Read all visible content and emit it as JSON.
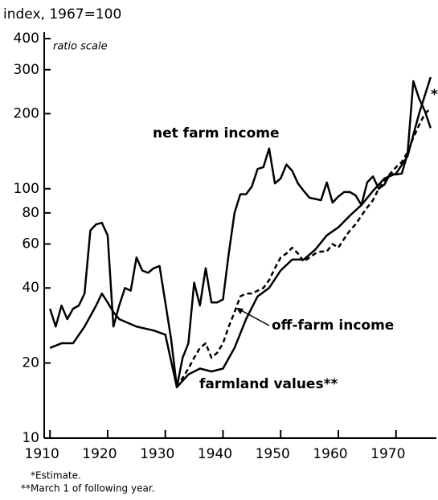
{
  "chart_data": {
    "type": "line",
    "title": "index, 1967=100",
    "subtitle": "ratio scale",
    "log_scale": true,
    "grid": false,
    "xlim": [
      1909,
      1977
    ],
    "xticks": [
      1910,
      1920,
      1930,
      1940,
      1950,
      1960,
      1970
    ],
    "ylim": [
      10,
      400
    ],
    "yticks": [
      10,
      20,
      40,
      60,
      80,
      100,
      200,
      300,
      400
    ],
    "series": [
      {
        "name": "net farm income",
        "color": "#000000",
        "dash": false,
        "x": [
          1910,
          1911,
          1912,
          1913,
          1914,
          1915,
          1916,
          1917,
          1918,
          1919,
          1920,
          1921,
          1922,
          1923,
          1924,
          1925,
          1926,
          1927,
          1928,
          1929,
          1930,
          1931,
          1932,
          1933,
          1934,
          1935,
          1936,
          1937,
          1938,
          1939,
          1940,
          1941,
          1942,
          1943,
          1944,
          1945,
          1946,
          1947,
          1948,
          1949,
          1950,
          1951,
          1952,
          1953,
          1954,
          1955,
          1956,
          1957,
          1958,
          1959,
          1960,
          1961,
          1962,
          1963,
          1964,
          1965,
          1966,
          1967,
          1968,
          1969,
          1970,
          1971,
          1972,
          1973,
          1974,
          1975,
          1976
        ],
        "values": [
          33,
          28,
          34,
          30,
          33,
          34,
          38,
          68,
          72,
          73,
          65,
          28,
          34,
          40,
          39,
          53,
          47,
          46,
          48,
          49,
          35,
          25,
          16,
          21,
          24,
          42,
          34,
          48,
          35,
          35,
          36,
          55,
          80,
          95,
          95,
          102,
          120,
          122,
          145,
          105,
          110,
          125,
          118,
          105,
          98,
          92,
          91,
          90,
          106,
          88,
          93,
          97,
          97,
          94,
          86,
          106,
          112,
          100,
          104,
          115,
          114,
          115,
          138,
          270,
          230,
          205,
          175
        ]
      },
      {
        "name": "farmland values**",
        "color": "#000000",
        "dash": false,
        "x": [
          1910,
          1912,
          1914,
          1916,
          1918,
          1919,
          1920,
          1921,
          1922,
          1925,
          1928,
          1930,
          1932,
          1934,
          1936,
          1938,
          1940,
          1942,
          1944,
          1946,
          1948,
          1950,
          1952,
          1954,
          1956,
          1958,
          1960,
          1962,
          1964,
          1966,
          1968,
          1970,
          1972,
          1974,
          1976
        ],
        "values": [
          23,
          24,
          24,
          28,
          34,
          38,
          35,
          32,
          30,
          28,
          27,
          26,
          16,
          18,
          19,
          18.5,
          19,
          23,
          30,
          37,
          40,
          47,
          52,
          52,
          57,
          65,
          70,
          78,
          86,
          98,
          110,
          115,
          135,
          200,
          280
        ]
      },
      {
        "name": "off-farm income",
        "color": "#000000",
        "dash": true,
        "x": [
          1932,
          1934,
          1935,
          1936,
          1937,
          1938,
          1939,
          1940,
          1941,
          1942,
          1943,
          1944,
          1945,
          1946,
          1947,
          1948,
          1949,
          1950,
          1951,
          1952,
          1953,
          1954,
          1955,
          1956,
          1957,
          1958,
          1959,
          1960,
          1961,
          1962,
          1963,
          1964,
          1965,
          1966,
          1967,
          1968,
          1969,
          1970,
          1971,
          1972,
          1973,
          1974,
          1975,
          1976
        ],
        "values": [
          16,
          19,
          21,
          23,
          24,
          21,
          22,
          24,
          28,
          32,
          37,
          38,
          38,
          39,
          40,
          43,
          48,
          53,
          55,
          58,
          55,
          51,
          53,
          55,
          56,
          56,
          60,
          58,
          63,
          68,
          72,
          78,
          84,
          90,
          100,
          108,
          115,
          122,
          128,
          140,
          160,
          180,
          200,
          210
        ]
      }
    ],
    "annotations": [
      "*",
      "*Estimate.",
      "**March 1 of following year."
    ]
  }
}
